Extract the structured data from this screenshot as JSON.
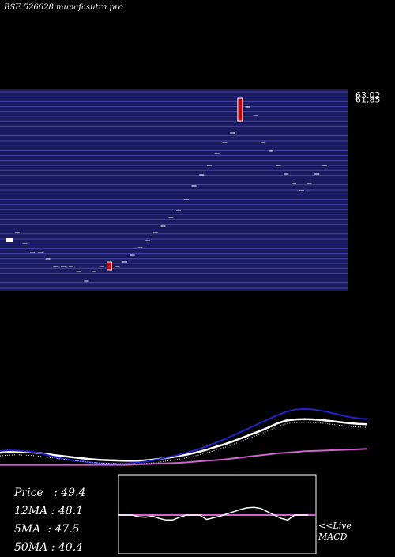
{
  "header": {
    "exchange_code": "BSE 526628",
    "site": "munafasutra.pro"
  },
  "colors": {
    "panel_bg": "#1a1a5e",
    "grid_line": "#4444aa",
    "candle_down": "#cc0000",
    "ma12": "#ffffff",
    "ma5": "#2222cc",
    "ma50": "#cc66cc",
    "macd_line": "#cc66cc"
  },
  "chart_data": [
    {
      "type": "candlestick",
      "y_tick_labels": [
        "63.02",
        "61.85"
      ],
      "ylim": [
        38,
        63.5
      ],
      "closes": [
        44.6,
        45.6,
        44.2,
        43.1,
        43.1,
        42.3,
        41.3,
        41.3,
        41.3,
        40.7,
        39.5,
        40.7,
        41.3,
        40.9,
        41.3,
        41.9,
        42.8,
        43.7,
        44.6,
        45.6,
        46.4,
        47.5,
        48.4,
        49.8,
        51.5,
        52.9,
        54.1,
        55.6,
        57.0,
        58.2,
        59.7,
        61.5,
        60.4,
        57.0,
        55.9,
        54.1,
        53.0,
        51.8,
        50.9,
        51.8,
        53.0,
        54.1
      ],
      "highlight_candles": [
        {
          "index": 13,
          "open": 41.9,
          "close": 40.9
        },
        {
          "index": 30,
          "open": 62.6,
          "close": 59.7
        }
      ]
    },
    {
      "type": "line",
      "series": [
        {
          "name": "12MA",
          "color": "#ffffff",
          "values": [
            44.0,
            44.2,
            44.3,
            44.2,
            44.0,
            43.7,
            43.3,
            43.0,
            42.7,
            42.4,
            42.1,
            41.9,
            41.8,
            41.7,
            41.6,
            41.6,
            41.7,
            41.9,
            42.2,
            42.6,
            43.0,
            43.5,
            44.1,
            44.8,
            45.6,
            46.4,
            47.3,
            48.3,
            49.3,
            50.3,
            51.4,
            52.6,
            53.4,
            53.7,
            53.8,
            53.7,
            53.5,
            53.2,
            52.9,
            52.6,
            52.4,
            52.3
          ]
        },
        {
          "name": "5MA",
          "color": "#2222cc",
          "values": [
            44.5,
            44.7,
            44.6,
            44.4,
            44.1,
            43.5,
            42.8,
            42.2,
            41.8,
            41.5,
            41.2,
            40.9,
            40.8,
            40.7,
            40.8,
            41.0,
            41.3,
            41.7,
            42.2,
            42.8,
            43.4,
            44.1,
            44.9,
            45.8,
            46.8,
            47.9,
            49.0,
            50.2,
            51.4,
            52.6,
            53.8,
            55.0,
            56.0,
            56.6,
            56.8,
            56.6,
            56.2,
            55.6,
            55.0,
            54.4,
            54.0,
            53.8
          ]
        },
        {
          "name": "50MA",
          "color": "#cc66cc",
          "values": [
            40.4,
            40.4,
            40.4,
            40.4,
            40.4,
            40.4,
            40.4,
            40.4,
            40.4,
            40.4,
            40.4,
            40.4,
            40.4,
            40.4,
            40.4,
            40.5,
            40.6,
            40.7,
            40.8,
            40.9,
            41.0,
            41.2,
            41.4,
            41.6,
            41.8,
            42.0,
            42.3,
            42.6,
            42.9,
            43.2,
            43.5,
            43.8,
            44.0,
            44.2,
            44.4,
            44.5,
            44.6,
            44.7,
            44.8,
            44.9,
            45.0,
            45.1
          ]
        }
      ]
    },
    {
      "type": "line",
      "title": "MACD",
      "values": [
        0,
        0,
        0,
        -0.3,
        -0.4,
        -0.2,
        -0.6,
        -0.9,
        -0.9,
        -0.4,
        0,
        0,
        0,
        -0.8,
        -0.5,
        -0.2,
        0.2,
        0.6,
        1.0,
        1.3,
        1.4,
        1.2,
        0.6,
        0,
        -0.6,
        -0.9,
        0,
        0,
        0
      ],
      "signal": 0
    }
  ],
  "stats": {
    "price": "Price   : 49.4",
    "ma12": "12MA : 48.1",
    "ma5": "5MA  : 47.5",
    "ma50": "50MA : 40.4"
  },
  "macd_label": {
    "live": "<<Live",
    "name": "MACD"
  }
}
